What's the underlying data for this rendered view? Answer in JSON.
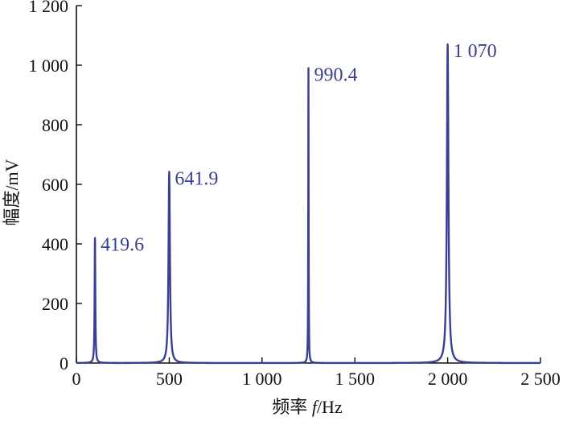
{
  "chart_data": {
    "type": "line",
    "xlabel": {
      "prefix": "频率 ",
      "symbol": "f",
      "unit": "/Hz"
    },
    "ylabel": "幅度/mV",
    "xlim": [
      0,
      2500
    ],
    "ylim": [
      0,
      1200
    ],
    "xticks": [
      0,
      500,
      1000,
      1500,
      2000,
      2500
    ],
    "xtick_labels": [
      "0",
      "500",
      "1 000",
      "1 500",
      "2 000",
      "2 500"
    ],
    "yticks": [
      0,
      200,
      400,
      600,
      800,
      1000,
      1200
    ],
    "ytick_labels": [
      "0",
      "200",
      "400",
      "600",
      "800",
      "1 000",
      "1 200"
    ],
    "grid": false,
    "series_color": "#3b3f93",
    "peaks": [
      {
        "x": 100,
        "y": 419.6,
        "label": "419.6"
      },
      {
        "x": 500,
        "y": 641.9,
        "label": "641.9"
      },
      {
        "x": 1250,
        "y": 990.4,
        "label": "990.4"
      },
      {
        "x": 2000,
        "y": 1070,
        "label": "1 070"
      }
    ]
  }
}
